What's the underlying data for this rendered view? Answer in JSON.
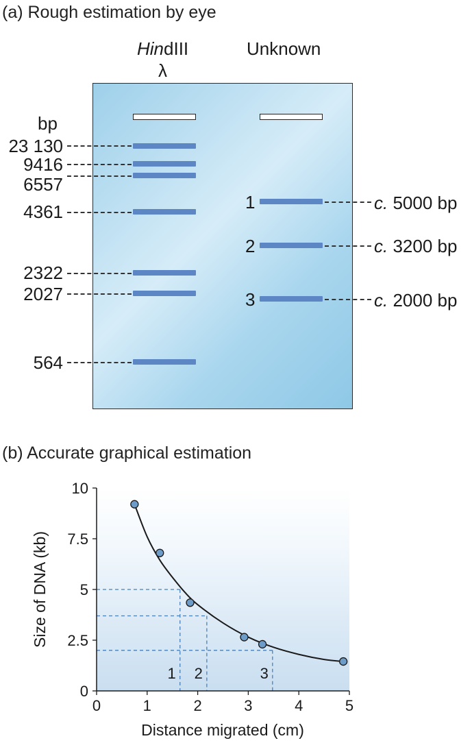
{
  "panel_a": {
    "heading": "(a) Rough estimation by eye",
    "lane1_title_italic": "Hin",
    "lane1_title_rest": "dIII",
    "lane1_subtitle": "λ",
    "lane2_title": "Unknown",
    "units_label": "bp",
    "markers": [
      "23 130",
      "9416",
      "6557",
      "4361",
      "2322",
      "2027",
      "564"
    ],
    "unknown_bands": [
      {
        "number": "1",
        "prefix": "c.",
        "size": "5000 bp"
      },
      {
        "number": "2",
        "prefix": "c.",
        "size": "3200 bp"
      },
      {
        "number": "3",
        "prefix": "c.",
        "size": "2000 bp"
      }
    ]
  },
  "panel_b": {
    "heading": "(b) Accurate graphical estimation",
    "colors": {
      "curve": "#1a1a1a",
      "point_fill": "#6e9cc9",
      "guide": "#4a7fb8"
    }
  },
  "chart_data": {
    "type": "scatter",
    "xlabel": "Distance migrated (cm)",
    "ylabel": "Size of DNA (kb)",
    "xlim": [
      0,
      5
    ],
    "ylim": [
      0,
      10
    ],
    "x_ticks": [
      0,
      1,
      2,
      3,
      4,
      5
    ],
    "y_ticks": [
      0,
      2.5,
      5,
      7.5,
      10
    ],
    "y_tick_labels": [
      "0",
      "2.5",
      "5",
      "7.5",
      "10"
    ],
    "grid": false,
    "points": [
      {
        "x": 0.75,
        "y": 9.2
      },
      {
        "x": 1.25,
        "y": 6.8
      },
      {
        "x": 1.85,
        "y": 4.35
      },
      {
        "x": 2.92,
        "y": 2.65
      },
      {
        "x": 3.28,
        "y": 2.3
      },
      {
        "x": 4.88,
        "y": 1.45
      }
    ],
    "fit_curve": [
      {
        "x": 0.75,
        "y": 9.2
      },
      {
        "x": 1.0,
        "y": 7.6
      },
      {
        "x": 1.25,
        "y": 6.45
      },
      {
        "x": 1.5,
        "y": 5.6
      },
      {
        "x": 1.75,
        "y": 4.85
      },
      {
        "x": 2.0,
        "y": 4.25
      },
      {
        "x": 2.5,
        "y": 3.35
      },
      {
        "x": 3.0,
        "y": 2.65
      },
      {
        "x": 3.5,
        "y": 2.15
      },
      {
        "x": 4.0,
        "y": 1.8
      },
      {
        "x": 4.5,
        "y": 1.55
      },
      {
        "x": 4.88,
        "y": 1.45
      }
    ],
    "unknowns": [
      {
        "label": "1",
        "x": 1.65,
        "y": 5.0
      },
      {
        "label": "2",
        "x": 2.18,
        "y": 3.7
      },
      {
        "label": "3",
        "x": 3.48,
        "y": 2.0
      }
    ]
  }
}
